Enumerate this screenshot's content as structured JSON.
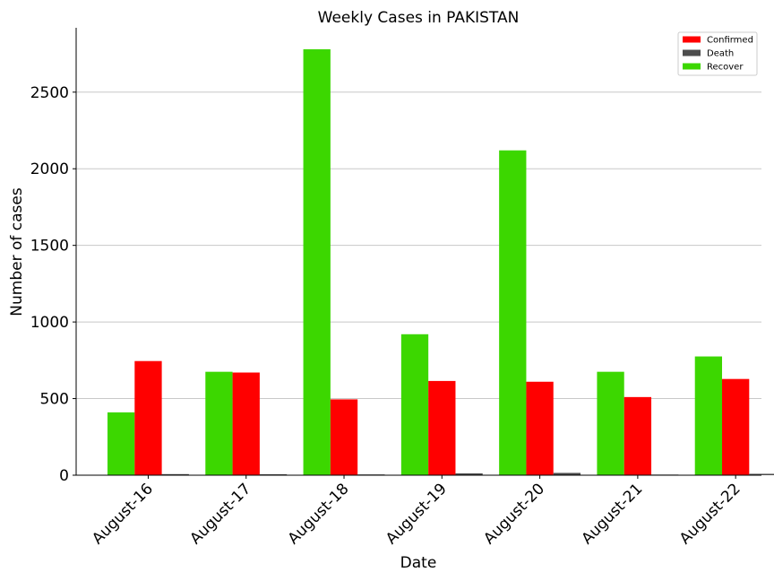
{
  "chart_data": {
    "type": "bar",
    "title": "Weekly Cases in PAKISTAN",
    "xlabel": "Date",
    "ylabel": "Number of cases",
    "categories": [
      "August-16",
      "August-17",
      "August-18",
      "August-19",
      "August-20",
      "August-21",
      "August-22"
    ],
    "series": [
      {
        "name": "Recover",
        "color": "#3cd700",
        "values": [
          410,
          675,
          2780,
          920,
          2120,
          675,
          775
        ]
      },
      {
        "name": "Confirmed",
        "color": "#ff0000",
        "values": [
          745,
          670,
          495,
          615,
          610,
          510,
          628
        ]
      },
      {
        "name": "Death",
        "color": "#4d4d4d",
        "values": [
          7,
          6,
          5,
          12,
          15,
          4,
          9
        ]
      }
    ],
    "legend_order": [
      "Confirmed",
      "Death",
      "Recover"
    ],
    "legend_position": "top-right",
    "yticks": [
      0,
      500,
      1000,
      1500,
      2000,
      2500
    ],
    "ylim": [
      0,
      2920
    ],
    "grid": "y"
  }
}
